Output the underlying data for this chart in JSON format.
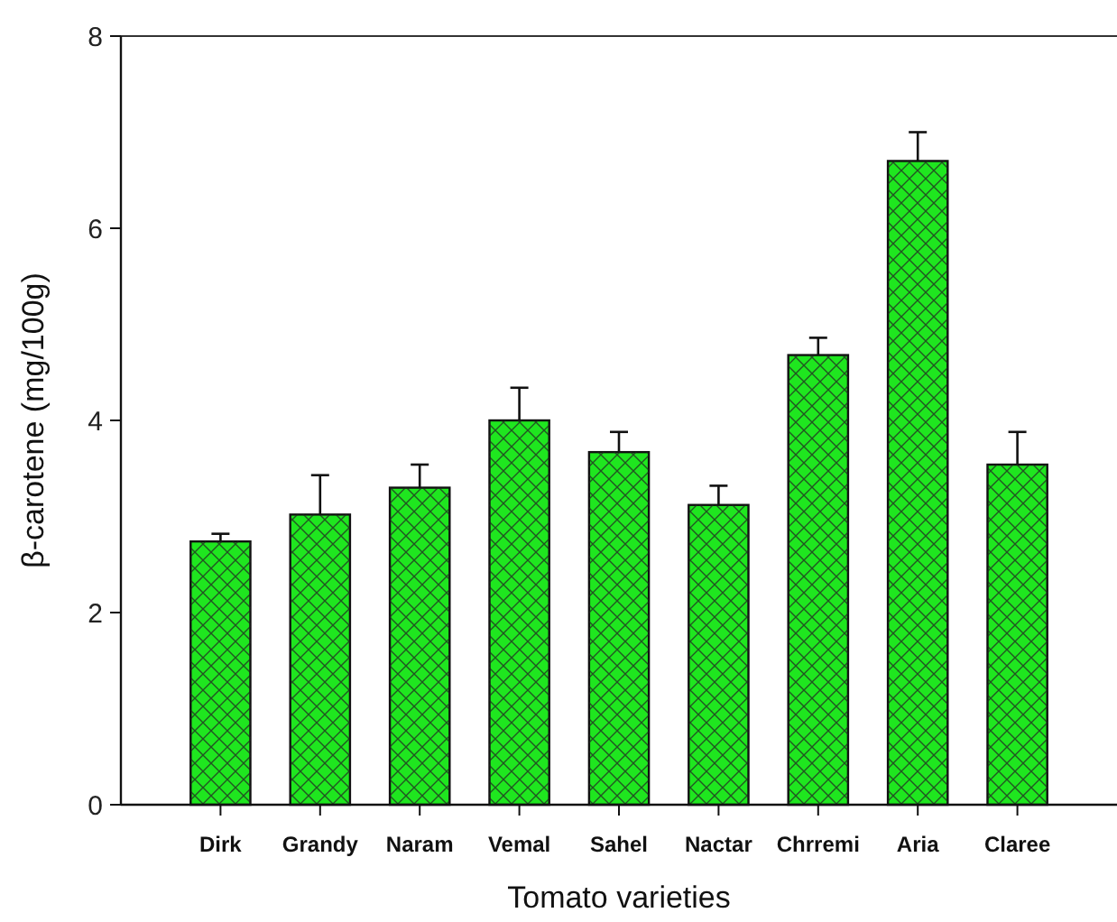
{
  "chart_data": {
    "type": "bar",
    "xlabel": "Tomato varieties",
    "ylabel": "β-carotene (mg/100g)",
    "categories": [
      "Dirk",
      "Grandy",
      "Naram",
      "Vemal",
      "Sahel",
      "Nactar",
      "Chrremi",
      "Aria",
      "Claree"
    ],
    "values": [
      2.74,
      3.02,
      3.3,
      4.0,
      3.67,
      3.12,
      4.68,
      6.7,
      3.54
    ],
    "errors": [
      0.08,
      0.41,
      0.24,
      0.34,
      0.21,
      0.2,
      0.18,
      0.3,
      0.34
    ],
    "color": "#1fe61f",
    "ylim": [
      0,
      8
    ],
    "yticks": [
      0,
      2,
      4,
      6,
      8
    ],
    "grid": false
  }
}
